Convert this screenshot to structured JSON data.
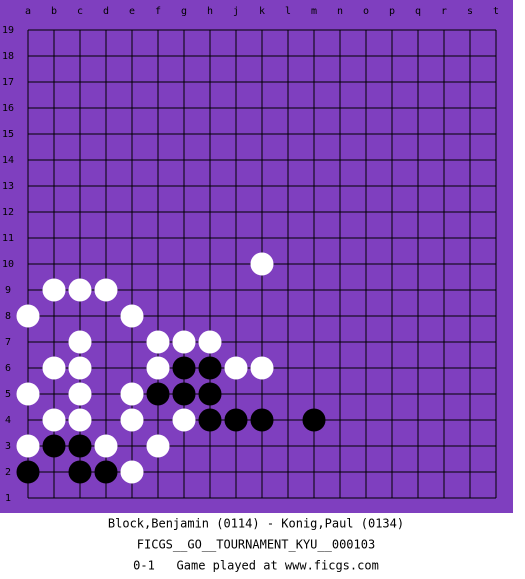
{
  "board": {
    "columns": [
      "a",
      "b",
      "c",
      "d",
      "e",
      "f",
      "g",
      "h",
      "j",
      "k",
      "l",
      "m",
      "n",
      "o",
      "p",
      "q",
      "r",
      "s",
      "t"
    ],
    "rows": [
      19,
      18,
      17,
      16,
      15,
      14,
      13,
      12,
      11,
      10,
      9,
      8,
      7,
      6,
      5,
      4,
      3,
      2,
      1
    ],
    "stones": [
      {
        "color": "white",
        "col": 9,
        "row": 10
      },
      {
        "color": "white",
        "col": 1,
        "row": 9
      },
      {
        "color": "white",
        "col": 2,
        "row": 9
      },
      {
        "color": "white",
        "col": 3,
        "row": 9
      },
      {
        "color": "white",
        "col": 0,
        "row": 8
      },
      {
        "color": "white",
        "col": 4,
        "row": 8
      },
      {
        "color": "white",
        "col": 2,
        "row": 7
      },
      {
        "color": "white",
        "col": 5,
        "row": 7
      },
      {
        "color": "white",
        "col": 6,
        "row": 7
      },
      {
        "color": "white",
        "col": 7,
        "row": 7
      },
      {
        "color": "white",
        "col": 1,
        "row": 6
      },
      {
        "color": "white",
        "col": 2,
        "row": 6
      },
      {
        "color": "white",
        "col": 5,
        "row": 6
      },
      {
        "color": "black",
        "col": 6,
        "row": 6
      },
      {
        "color": "black",
        "col": 7,
        "row": 6
      },
      {
        "color": "white",
        "col": 8,
        "row": 6
      },
      {
        "color": "white",
        "col": 9,
        "row": 6
      },
      {
        "color": "white",
        "col": 0,
        "row": 5
      },
      {
        "color": "white",
        "col": 2,
        "row": 5
      },
      {
        "color": "white",
        "col": 4,
        "row": 5
      },
      {
        "color": "black",
        "col": 5,
        "row": 5
      },
      {
        "color": "black",
        "col": 6,
        "row": 5
      },
      {
        "color": "black",
        "col": 7,
        "row": 5
      },
      {
        "color": "white",
        "col": 1,
        "row": 4
      },
      {
        "color": "white",
        "col": 2,
        "row": 4
      },
      {
        "color": "white",
        "col": 4,
        "row": 4
      },
      {
        "color": "white",
        "col": 6,
        "row": 4
      },
      {
        "color": "black",
        "col": 7,
        "row": 4
      },
      {
        "color": "black",
        "col": 8,
        "row": 4
      },
      {
        "color": "black",
        "col": 9,
        "row": 4
      },
      {
        "color": "black",
        "col": 11,
        "row": 4
      },
      {
        "color": "white",
        "col": 0,
        "row": 3
      },
      {
        "color": "black",
        "col": 1,
        "row": 3
      },
      {
        "color": "black",
        "col": 2,
        "row": 3
      },
      {
        "color": "white",
        "col": 3,
        "row": 3
      },
      {
        "color": "white",
        "col": 5,
        "row": 3
      },
      {
        "color": "black",
        "col": 0,
        "row": 2
      },
      {
        "color": "black",
        "col": 2,
        "row": 2
      },
      {
        "color": "black",
        "col": 3,
        "row": 2
      },
      {
        "color": "white",
        "col": 4,
        "row": 2
      }
    ]
  },
  "footer": {
    "players": "Block,Benjamin (0114) - Konig,Paul (0134)",
    "event": "FICGS__GO__TOURNAMENT_KYU__000103",
    "result": "0-1   Game played at www.ficgs.com"
  }
}
